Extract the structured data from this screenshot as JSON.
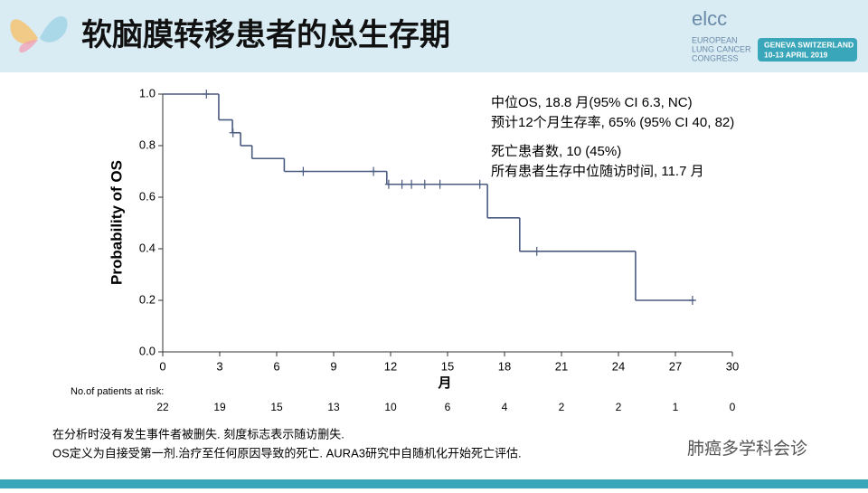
{
  "header": {
    "title": "软脑膜转移患者的总生存期",
    "logo_name": "elcc",
    "logo_line1": "EUROPEAN",
    "logo_line2": "LUNG CANCER",
    "logo_line3": "CONGRESS",
    "logo_place": "GENEVA SWITZERLAND",
    "logo_date": "10-13 APRIL 2019"
  },
  "chart_data": {
    "type": "step",
    "ylabel": "Probability of OS",
    "xlabel": "月",
    "x": [
      0,
      2.95,
      3.67,
      4.1,
      4.7,
      6.4,
      11.8,
      17.1,
      18.8,
      24.9,
      28
    ],
    "values": [
      1.0,
      0.9,
      0.85,
      0.8,
      0.75,
      0.7,
      0.65,
      0.52,
      0.39,
      0.2,
      0.2
    ],
    "censor_x": [
      2.3,
      3.7,
      7.4,
      11.1,
      11.9,
      12.6,
      13.1,
      13.8,
      14.6,
      16.7,
      19.7,
      27.9
    ],
    "censor_values": [
      1.0,
      0.85,
      0.7,
      0.7,
      0.65,
      0.65,
      0.65,
      0.65,
      0.65,
      0.65,
      0.39,
      0.2
    ],
    "color": "#4a5a80",
    "xlim": [
      0,
      30
    ],
    "xticks": [
      0,
      3,
      6,
      9,
      12,
      15,
      18,
      21,
      24,
      27,
      30
    ],
    "ylim": [
      0,
      1
    ],
    "yticks": [
      {
        "value": 0,
        "label": "0.0"
      },
      0.2,
      0.4,
      0.6,
      0.8,
      {
        "value": 1,
        "label": "1.0"
      }
    ],
    "risk_label": "No.of patients at risk:",
    "risk_counts": [
      22,
      19,
      15,
      13,
      10,
      6,
      4,
      2,
      2,
      1,
      0
    ],
    "annotations": [
      "中位OS, 18.8 月(95% CI 6.3, NC)",
      "预计12个月生存率, 65% (95% CI 40, 82)",
      "死亡患者数, 10 (45%)",
      "所有患者生存中位随访时间, 11.7 月"
    ]
  },
  "footer": {
    "note1": "在分析时没有发生事件者被删失.  刻度标志表示随访删失.",
    "note2": "OS定义为自接受第一剂.治疗至任何原因导致的死亡. AURA3研究中自随机化开始死亡评估.",
    "watermark": "肺癌多学科会诊"
  }
}
